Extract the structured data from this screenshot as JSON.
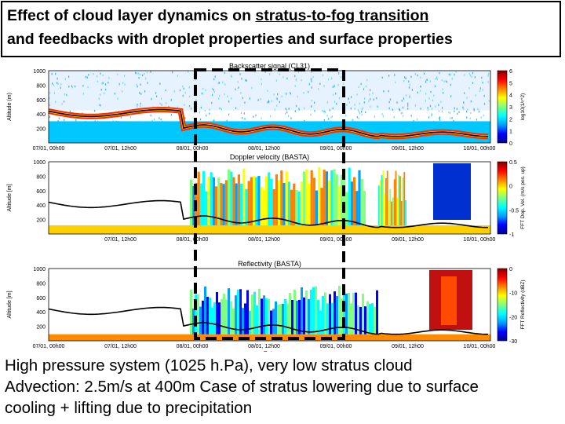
{
  "slide": {
    "title_line1_prefix": "Effect of cloud layer dynamics on ",
    "title_line1_link": "stratus-to-fog transition",
    "title_line2": "and feedbacks with droplet properties and surface properties",
    "caption_lines": [
      "High pressure system (1025 h.Pa), very low stratus cloud",
      "Advection: 2.5m/s at 400m Case of stratus lowering due to surface",
      "cooling + lifting due to precipitation"
    ]
  },
  "panels": [
    {
      "title": "Backscatter signal (CL31)",
      "ylabel": "Altitude (m)",
      "yticks": [
        "1000",
        "800",
        "600",
        "400",
        "200"
      ],
      "xticks": [
        "07/01, 00h00",
        "07/01, 12h00",
        "08/01, 00h00",
        "08/01, 12h00",
        "09/01, 00h00",
        "09/01, 12h00",
        "10/01, 00h00"
      ],
      "colorbar_ticks": [
        "6",
        "5",
        "4",
        "3",
        "2",
        "1",
        "0"
      ],
      "colorbar_label": "log10(1/r^2)"
    },
    {
      "title": "Doppler velocity (BASTA)",
      "ylabel": "Altitude [m]",
      "yticks": [
        "1000",
        "800",
        "600",
        "400",
        "200"
      ],
      "xticks": [
        "07/01, 12h00",
        "08/01, 00h00",
        "08/01, 12h00",
        "09/01, 00h00",
        "09/01, 12h00",
        "10/01, 00h00"
      ],
      "colorbar_ticks": [
        "0.5",
        "0",
        "-0.5",
        "-1"
      ],
      "colorbar_label": "FFT Dop. Vel. (m/s pos. up)"
    },
    {
      "title": "Reflectivity (BASTA)",
      "ylabel": "Altitude [m]",
      "yticks": [
        "1000",
        "800",
        "600",
        "400",
        "200"
      ],
      "xticks": [
        "07/01, 00h00",
        "07/01, 12h00",
        "08/01, 00h00",
        "08/01, 12h00",
        "09/01, 00h00",
        "09/01, 12h00",
        "10/01, 00h00"
      ],
      "xlabel": "Date",
      "colorbar_ticks": [
        "0",
        "-10",
        "-20",
        "-30"
      ],
      "colorbar_label": "FFT Reflectivity (dBZ)"
    }
  ],
  "colors": {
    "border": "#000000",
    "highlight_box": "#000000",
    "jet": [
      "#00008f",
      "#0000ff",
      "#00a0ff",
      "#00ffff",
      "#80ff80",
      "#ffff00",
      "#ff8000",
      "#ff0000",
      "#800000"
    ]
  }
}
